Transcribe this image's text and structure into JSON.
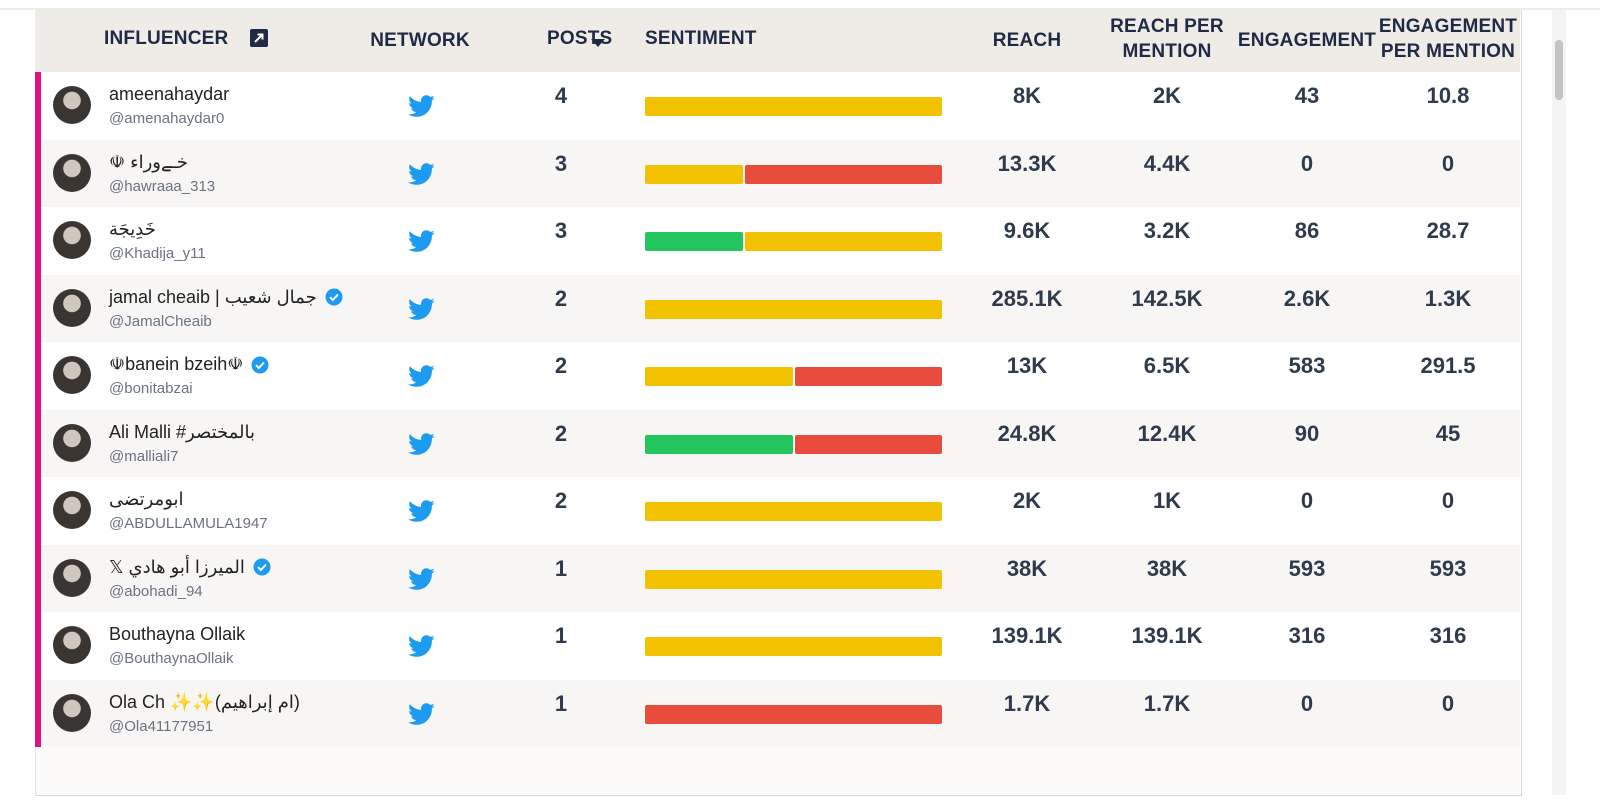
{
  "header": {
    "columns": [
      "INFLUENCER",
      "NETWORK",
      "POSTS",
      "SENTIMENT",
      "REACH",
      "REACH PER MENTION",
      "ENGAGEMENT",
      "ENGAGEMENT PER MENTION"
    ]
  },
  "sentiment_colors": [
    "#22c55e",
    "#f2c200",
    "#e84c3d"
  ],
  "table": {
    "rows": [
      {
        "name": "ameenahaydar",
        "handle": "@amenahaydar0",
        "verified": false,
        "posts": "4",
        "sentiment": [
          0,
          4,
          0
        ],
        "reach": "8K",
        "reach_per_mention": "2K",
        "engagement": "43",
        "engagement_per_mention": "10.8"
      },
      {
        "name": "خـےوراء ☫",
        "handle": "@hawraaa_313",
        "verified": false,
        "posts": "3",
        "sentiment": [
          0,
          1,
          2
        ],
        "reach": "13.3K",
        "reach_per_mention": "4.4K",
        "engagement": "0",
        "engagement_per_mention": "0"
      },
      {
        "name": "خَدِيجَة",
        "handle": "@Khadija_y11",
        "verified": false,
        "posts": "3",
        "sentiment": [
          1,
          2,
          0
        ],
        "reach": "9.6K",
        "reach_per_mention": "3.2K",
        "engagement": "86",
        "engagement_per_mention": "28.7"
      },
      {
        "name": "jamal cheaib | جمال شعيب",
        "handle": "@JamalCheaib",
        "verified": true,
        "posts": "2",
        "sentiment": [
          0,
          2,
          0
        ],
        "reach": "285.1K",
        "reach_per_mention": "142.5K",
        "engagement": "2.6K",
        "engagement_per_mention": "1.3K"
      },
      {
        "name": "☫banein bzeih☫",
        "handle": "@bonitabzai",
        "verified": true,
        "posts": "2",
        "sentiment": [
          0,
          1,
          1
        ],
        "reach": "13K",
        "reach_per_mention": "6.5K",
        "engagement": "583",
        "engagement_per_mention": "291.5"
      },
      {
        "name": "Ali Malli #بالمختصر",
        "handle": "@malliali7",
        "verified": false,
        "posts": "2",
        "sentiment": [
          1,
          0,
          1
        ],
        "reach": "24.8K",
        "reach_per_mention": "12.4K",
        "engagement": "90",
        "engagement_per_mention": "45"
      },
      {
        "name": "ابومرتضى",
        "handle": "@ABDULLAMULA1947",
        "verified": false,
        "posts": "2",
        "sentiment": [
          0,
          2,
          0
        ],
        "reach": "2K",
        "reach_per_mention": "1K",
        "engagement": "0",
        "engagement_per_mention": "0"
      },
      {
        "name": "الميرزا أبو هادي 𝕏",
        "handle": "@abohadi_94",
        "verified": true,
        "posts": "1",
        "sentiment": [
          0,
          1,
          0
        ],
        "reach": "38K",
        "reach_per_mention": "38K",
        "engagement": "593",
        "engagement_per_mention": "593"
      },
      {
        "name": "Bouthayna Ollaik",
        "handle": "@BouthaynaOllaik",
        "verified": false,
        "posts": "1",
        "sentiment": [
          0,
          1,
          0
        ],
        "reach": "139.1K",
        "reach_per_mention": "139.1K",
        "engagement": "316",
        "engagement_per_mention": "316"
      },
      {
        "name": "Ola Ch ✨✨(ام إبراهيم)",
        "handle": "@Ola41177951",
        "verified": false,
        "posts": "1",
        "sentiment": [
          0,
          0,
          1
        ],
        "reach": "1.7K",
        "reach_per_mention": "1.7K",
        "engagement": "0",
        "engagement_per_mention": "0"
      }
    ]
  }
}
